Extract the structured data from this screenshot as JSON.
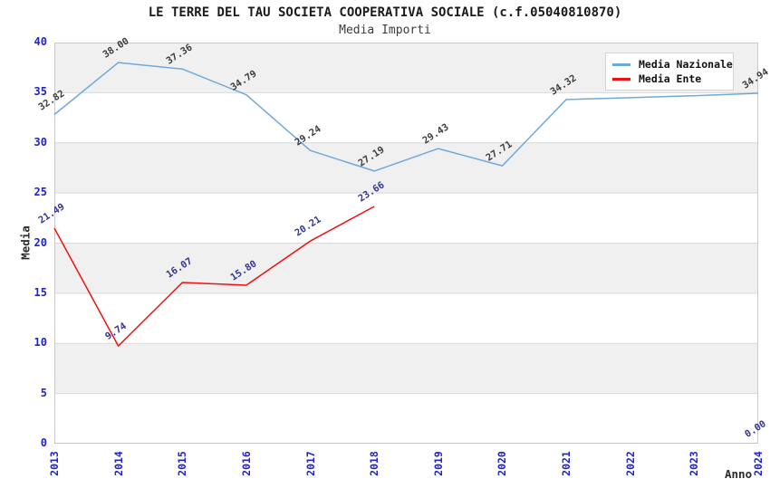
{
  "header": {
    "title": "LE TERRE DEL TAU SOCIETA COOPERATIVA SOCIALE (c.f.05040810870)",
    "subtitle": "Media Importi"
  },
  "axes": {
    "y_label": "Media",
    "x_label": "Anno",
    "y_ticks": [
      0,
      5,
      10,
      15,
      20,
      25,
      30,
      35,
      40
    ],
    "x_ticks": [
      "2013",
      "2014",
      "2015",
      "2016",
      "2017",
      "2018",
      "2019",
      "2020",
      "2021",
      "2022",
      "2023",
      "2024"
    ],
    "tick_color": "#2222cc"
  },
  "legend": {
    "position": "top-right",
    "items": [
      {
        "label": "Media Nazionale",
        "color": "#6fa8dc"
      },
      {
        "label": "Media Ente",
        "color": "#ee1111"
      }
    ]
  },
  "style": {
    "band_color": "#f0f0f0",
    "grid_color": "#d9d9d9",
    "border_color": "#c8c8c8",
    "background": "#ffffff"
  },
  "chart_data": {
    "type": "line",
    "title": "LE TERRE DEL TAU SOCIETA COOPERATIVA SOCIALE (c.f.05040810870)",
    "subtitle": "Media Importi",
    "xlabel": "Anno",
    "ylabel": "Media",
    "ylim": [
      0,
      40
    ],
    "y_tick_step": 5,
    "grid": "horizontal-bands",
    "legend_position": "top-right",
    "categories": [
      2013,
      2014,
      2015,
      2016,
      2017,
      2018,
      2019,
      2020,
      2021,
      2022,
      2023,
      2024
    ],
    "series": [
      {
        "name": "Media Nazionale",
        "color": "#6fa8dc",
        "label_color": "#3d3d3d",
        "values": [
          32.82,
          38.0,
          37.36,
          34.79,
          29.24,
          27.19,
          29.43,
          27.71,
          34.32,
          34.5,
          34.7,
          34.94
        ],
        "labels": [
          "32.82",
          "38.00",
          "37.36",
          "34.79",
          "29.24",
          "27.19",
          "29.43",
          "27.71",
          "34.32",
          null,
          null,
          "34.94"
        ]
      },
      {
        "name": "Media Ente",
        "color": "#ee1111",
        "label_color": "#333399",
        "values": [
          21.49,
          9.74,
          16.07,
          15.8,
          20.21,
          23.66,
          null,
          null,
          null,
          null,
          null,
          0.0
        ],
        "labels": [
          "21.49",
          "9.74",
          "16.07",
          "15.80",
          "20.21",
          "23.66",
          null,
          null,
          null,
          null,
          null,
          "0.00"
        ]
      }
    ]
  }
}
